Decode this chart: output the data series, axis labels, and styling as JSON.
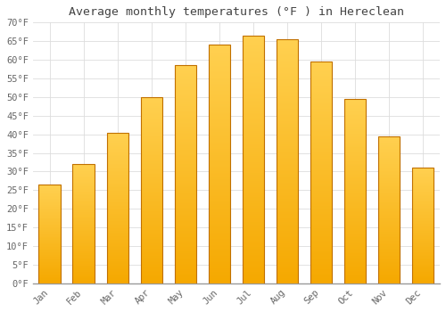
{
  "title": "Average monthly temperatures (°F ) in Hereclean",
  "months": [
    "Jan",
    "Feb",
    "Mar",
    "Apr",
    "May",
    "Jun",
    "Jul",
    "Aug",
    "Sep",
    "Oct",
    "Nov",
    "Dec"
  ],
  "values": [
    26.5,
    32,
    40.5,
    50,
    58.5,
    64,
    66.5,
    65.5,
    59.5,
    49.5,
    39.5,
    31
  ],
  "bar_color_top": "#FFD050",
  "bar_color_bottom": "#F5A800",
  "bar_edge_color": "#C07000",
  "background_color": "#FFFFFF",
  "grid_color": "#DDDDDD",
  "text_color": "#666666",
  "title_color": "#444444",
  "ylim": [
    0,
    70
  ],
  "yticks": [
    0,
    5,
    10,
    15,
    20,
    25,
    30,
    35,
    40,
    45,
    50,
    55,
    60,
    65,
    70
  ],
  "ylabel_suffix": "°F",
  "title_fontsize": 9.5,
  "tick_fontsize": 7.5,
  "figsize": [
    5.0,
    3.5
  ],
  "dpi": 100
}
